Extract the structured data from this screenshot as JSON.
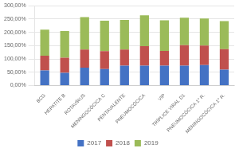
{
  "chart_data": {
    "type": "bar",
    "stacked": true,
    "categories": [
      "BCG",
      "HEPATITE B",
      "ROTAVÍRUS",
      "MENINGOCÓCICA C",
      "PENTAVALENTE",
      "PNEUMOCÓCICA",
      "VIP",
      "TRÍPLICE VIRAL D1",
      "PNEUMOCÓCICA 1° R.",
      "MENINGOCÓCICA 1° R."
    ],
    "series": [
      {
        "name": "2017",
        "color": "#4472C4",
        "values": [
          57,
          48,
          67,
          62,
          75,
          75,
          75,
          75,
          77,
          60
        ]
      },
      {
        "name": "2018",
        "color": "#C0504D",
        "values": [
          55,
          57,
          68,
          67,
          60,
          73,
          55,
          77,
          73,
          77
        ]
      },
      {
        "name": "2019",
        "color": "#9BBB59",
        "values": [
          98,
          100,
          122,
          115,
          112,
          116,
          115,
          103,
          102,
          105
        ]
      }
    ],
    "ylim": [
      0,
      300
    ],
    "yticks": [
      {
        "value": 0,
        "label": "0,00%"
      },
      {
        "value": 50,
        "label": "50,00%"
      },
      {
        "value": 100,
        "label": "100,00%"
      },
      {
        "value": 150,
        "label": "150,00%"
      },
      {
        "value": 200,
        "label": "200,00%"
      },
      {
        "value": 250,
        "label": "250,00%"
      },
      {
        "value": 300,
        "label": "300,00%"
      }
    ],
    "grid": true,
    "legend": "bottom"
  }
}
